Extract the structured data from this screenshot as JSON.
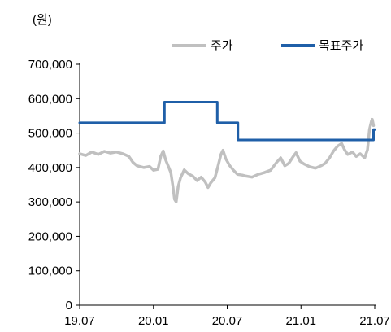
{
  "chart_data": {
    "type": "line",
    "unit": "(원)",
    "y_ticks": [
      "0",
      "100,000",
      "200,000",
      "300,000",
      "400,000",
      "500,000",
      "600,000",
      "700,000"
    ],
    "x_ticks": [
      "19.07",
      "20.01",
      "20.07",
      "21.01",
      "21.07"
    ],
    "ylim": [
      0,
      700000
    ],
    "xlim": [
      "2019-07-26",
      "2021-07-26"
    ],
    "grid": false,
    "legend_position": "top-right",
    "series": [
      {
        "name": "주가",
        "color": "#c0c0c0",
        "points": [
          [
            "2019-07-26",
            440000
          ],
          [
            "2019-08-10",
            435000
          ],
          [
            "2019-08-25",
            445000
          ],
          [
            "2019-09-10",
            438000
          ],
          [
            "2019-09-25",
            447000
          ],
          [
            "2019-10-10",
            442000
          ],
          [
            "2019-10-25",
            445000
          ],
          [
            "2019-11-10",
            440000
          ],
          [
            "2019-11-25",
            432000
          ],
          [
            "2019-12-05",
            415000
          ],
          [
            "2019-12-15",
            405000
          ],
          [
            "2020-01-01",
            400000
          ],
          [
            "2020-01-15",
            403000
          ],
          [
            "2020-01-25",
            392000
          ],
          [
            "2020-02-05",
            395000
          ],
          [
            "2020-02-12",
            433000
          ],
          [
            "2020-02-18",
            448000
          ],
          [
            "2020-02-24",
            422000
          ],
          [
            "2020-03-01",
            405000
          ],
          [
            "2020-03-08",
            385000
          ],
          [
            "2020-03-13",
            345000
          ],
          [
            "2020-03-17",
            308000
          ],
          [
            "2020-03-21",
            300000
          ],
          [
            "2020-03-26",
            345000
          ],
          [
            "2020-04-01",
            370000
          ],
          [
            "2020-04-10",
            393000
          ],
          [
            "2020-04-20",
            382000
          ],
          [
            "2020-05-01",
            375000
          ],
          [
            "2020-05-12",
            362000
          ],
          [
            "2020-05-22",
            372000
          ],
          [
            "2020-06-01",
            358000
          ],
          [
            "2020-06-08",
            342000
          ],
          [
            "2020-06-15",
            356000
          ],
          [
            "2020-06-25",
            370000
          ],
          [
            "2020-07-03",
            405000
          ],
          [
            "2020-07-10",
            438000
          ],
          [
            "2020-07-15",
            450000
          ],
          [
            "2020-07-22",
            425000
          ],
          [
            "2020-08-01",
            405000
          ],
          [
            "2020-08-10",
            392000
          ],
          [
            "2020-08-20",
            380000
          ],
          [
            "2020-09-01",
            378000
          ],
          [
            "2020-09-10",
            375000
          ],
          [
            "2020-09-25",
            372000
          ],
          [
            "2020-10-10",
            380000
          ],
          [
            "2020-10-25",
            385000
          ],
          [
            "2020-11-10",
            392000
          ],
          [
            "2020-11-25",
            415000
          ],
          [
            "2020-12-05",
            428000
          ],
          [
            "2020-12-15",
            405000
          ],
          [
            "2020-12-25",
            412000
          ],
          [
            "2021-01-05",
            432000
          ],
          [
            "2021-01-12",
            443000
          ],
          [
            "2021-01-22",
            418000
          ],
          [
            "2021-02-01",
            410000
          ],
          [
            "2021-02-15",
            402000
          ],
          [
            "2021-03-01",
            398000
          ],
          [
            "2021-03-15",
            405000
          ],
          [
            "2021-03-25",
            412000
          ],
          [
            "2021-04-05",
            428000
          ],
          [
            "2021-04-15",
            448000
          ],
          [
            "2021-04-25",
            462000
          ],
          [
            "2021-05-05",
            470000
          ],
          [
            "2021-05-12",
            452000
          ],
          [
            "2021-05-20",
            438000
          ],
          [
            "2021-06-01",
            445000
          ],
          [
            "2021-06-10",
            432000
          ],
          [
            "2021-06-20",
            440000
          ],
          [
            "2021-07-01",
            428000
          ],
          [
            "2021-07-08",
            452000
          ],
          [
            "2021-07-13",
            510000
          ],
          [
            "2021-07-18",
            535000
          ],
          [
            "2021-07-20",
            540000
          ],
          [
            "2021-07-23",
            522000
          ]
        ]
      },
      {
        "name": "목표주가",
        "color": "#1f5fa8",
        "points": [
          [
            "2019-07-26",
            530000
          ],
          [
            "2020-02-21",
            530000
          ],
          [
            "2020-02-21",
            590000
          ],
          [
            "2020-07-01",
            590000
          ],
          [
            "2020-07-01",
            530000
          ],
          [
            "2020-08-21",
            530000
          ],
          [
            "2020-08-21",
            480000
          ],
          [
            "2021-07-23",
            480000
          ],
          [
            "2021-07-23",
            510000
          ],
          [
            "2021-07-26",
            510000
          ]
        ]
      }
    ]
  }
}
